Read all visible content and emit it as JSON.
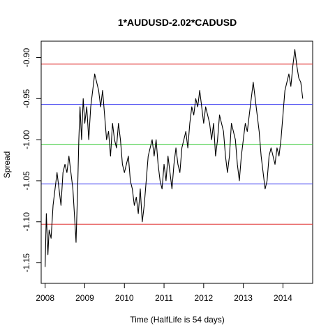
{
  "chart_data": {
    "type": "line",
    "title": "1*AUDUSD-2.02*CADUSD",
    "xlabel": "Time  (HalfLife is 54 days)",
    "ylabel": "Spread",
    "xlim": [
      2007.9,
      2014.75
    ],
    "ylim": [
      -1.175,
      -0.88
    ],
    "x_ticks": [
      2008,
      2009,
      2010,
      2011,
      2012,
      2013,
      2014
    ],
    "x_tick_labels": [
      "2008",
      "2009",
      "2010",
      "2011",
      "2012",
      "2013",
      "2014"
    ],
    "y_ticks": [
      -1.15,
      -1.1,
      -1.05,
      -1.0,
      -0.95,
      -0.9
    ],
    "y_tick_labels": [
      "-1.15",
      "-1.10",
      "-1.05",
      "-1.00",
      "-0.95",
      "-0.90"
    ],
    "horizontal_lines": [
      {
        "value": -0.908,
        "color": "#e03030"
      },
      {
        "value": -0.957,
        "color": "#3c3cf0"
      },
      {
        "value": -1.006,
        "color": "#2ec82e"
      },
      {
        "value": -1.054,
        "color": "#3c3cf0"
      },
      {
        "value": -1.103,
        "color": "#e03030"
      }
    ],
    "series": [
      {
        "color": "#000000",
        "points": [
          [
            2008.0,
            -1.155
          ],
          [
            2008.03,
            -1.09
          ],
          [
            2008.07,
            -1.14
          ],
          [
            2008.1,
            -1.11
          ],
          [
            2008.15,
            -1.12
          ],
          [
            2008.2,
            -1.08
          ],
          [
            2008.25,
            -1.06
          ],
          [
            2008.3,
            -1.04
          ],
          [
            2008.35,
            -1.06
          ],
          [
            2008.4,
            -1.08
          ],
          [
            2008.45,
            -1.04
          ],
          [
            2008.5,
            -1.03
          ],
          [
            2008.55,
            -1.04
          ],
          [
            2008.6,
            -1.02
          ],
          [
            2008.65,
            -1.04
          ],
          [
            2008.7,
            -1.06
          ],
          [
            2008.75,
            -1.1
          ],
          [
            2008.78,
            -1.125
          ],
          [
            2008.82,
            -1.06
          ],
          [
            2008.85,
            -1.0
          ],
          [
            2008.88,
            -0.96
          ],
          [
            2008.92,
            -1.0
          ],
          [
            2008.96,
            -0.95
          ],
          [
            2009.0,
            -0.98
          ],
          [
            2009.05,
            -0.96
          ],
          [
            2009.1,
            -1.0
          ],
          [
            2009.15,
            -0.96
          ],
          [
            2009.2,
            -0.94
          ],
          [
            2009.25,
            -0.92
          ],
          [
            2009.3,
            -0.93
          ],
          [
            2009.35,
            -0.94
          ],
          [
            2009.4,
            -0.96
          ],
          [
            2009.45,
            -0.94
          ],
          [
            2009.5,
            -0.97
          ],
          [
            2009.55,
            -1.0
          ],
          [
            2009.6,
            -0.99
          ],
          [
            2009.65,
            -1.02
          ],
          [
            2009.7,
            -0.98
          ],
          [
            2009.75,
            -1.0
          ],
          [
            2009.8,
            -1.01
          ],
          [
            2009.85,
            -0.98
          ],
          [
            2009.9,
            -1.0
          ],
          [
            2009.95,
            -1.03
          ],
          [
            2010.0,
            -1.04
          ],
          [
            2010.05,
            -1.03
          ],
          [
            2010.1,
            -1.02
          ],
          [
            2010.15,
            -1.05
          ],
          [
            2010.2,
            -1.06
          ],
          [
            2010.25,
            -1.08
          ],
          [
            2010.3,
            -1.07
          ],
          [
            2010.35,
            -1.09
          ],
          [
            2010.4,
            -1.06
          ],
          [
            2010.45,
            -1.1
          ],
          [
            2010.5,
            -1.08
          ],
          [
            2010.55,
            -1.05
          ],
          [
            2010.6,
            -1.02
          ],
          [
            2010.65,
            -1.01
          ],
          [
            2010.7,
            -1.0
          ],
          [
            2010.75,
            -1.02
          ],
          [
            2010.8,
            -1.0
          ],
          [
            2010.85,
            -1.03
          ],
          [
            2010.9,
            -1.05
          ],
          [
            2010.95,
            -1.06
          ],
          [
            2011.0,
            -1.03
          ],
          [
            2011.05,
            -1.05
          ],
          [
            2011.1,
            -1.02
          ],
          [
            2011.15,
            -1.04
          ],
          [
            2011.2,
            -1.06
          ],
          [
            2011.25,
            -1.03
          ],
          [
            2011.3,
            -1.01
          ],
          [
            2011.35,
            -1.03
          ],
          [
            2011.4,
            -1.04
          ],
          [
            2011.45,
            -1.01
          ],
          [
            2011.5,
            -1.0
          ],
          [
            2011.55,
            -0.99
          ],
          [
            2011.6,
            -1.01
          ],
          [
            2011.65,
            -0.98
          ],
          [
            2011.7,
            -0.96
          ],
          [
            2011.75,
            -0.97
          ],
          [
            2011.8,
            -0.95
          ],
          [
            2011.85,
            -0.96
          ],
          [
            2011.9,
            -0.94
          ],
          [
            2011.95,
            -0.96
          ],
          [
            2012.0,
            -0.98
          ],
          [
            2012.05,
            -0.96
          ],
          [
            2012.1,
            -0.97
          ],
          [
            2012.15,
            -0.98
          ],
          [
            2012.2,
            -1.0
          ],
          [
            2012.25,
            -0.98
          ],
          [
            2012.3,
            -1.02
          ],
          [
            2012.35,
            -1.0
          ],
          [
            2012.4,
            -0.97
          ],
          [
            2012.45,
            -0.98
          ],
          [
            2012.5,
            -0.99
          ],
          [
            2012.55,
            -1.02
          ],
          [
            2012.6,
            -1.04
          ],
          [
            2012.65,
            -1.02
          ],
          [
            2012.7,
            -0.98
          ],
          [
            2012.75,
            -0.99
          ],
          [
            2012.8,
            -1.0
          ],
          [
            2012.85,
            -1.03
          ],
          [
            2012.9,
            -1.05
          ],
          [
            2012.95,
            -1.02
          ],
          [
            2013.0,
            -1.0
          ],
          [
            2013.05,
            -0.98
          ],
          [
            2013.1,
            -0.99
          ],
          [
            2013.15,
            -0.97
          ],
          [
            2013.2,
            -0.95
          ],
          [
            2013.25,
            -0.93
          ],
          [
            2013.3,
            -0.95
          ],
          [
            2013.35,
            -0.97
          ],
          [
            2013.4,
            -0.99
          ],
          [
            2013.45,
            -1.02
          ],
          [
            2013.5,
            -1.04
          ],
          [
            2013.55,
            -1.06
          ],
          [
            2013.6,
            -1.05
          ],
          [
            2013.65,
            -1.02
          ],
          [
            2013.7,
            -1.01
          ],
          [
            2013.75,
            -1.02
          ],
          [
            2013.8,
            -1.03
          ],
          [
            2013.85,
            -1.01
          ],
          [
            2013.9,
            -1.02
          ],
          [
            2013.95,
            -1.0
          ],
          [
            2014.0,
            -0.97
          ],
          [
            2014.05,
            -0.94
          ],
          [
            2014.1,
            -0.93
          ],
          [
            2014.15,
            -0.92
          ],
          [
            2014.2,
            -0.935
          ],
          [
            2014.25,
            -0.91
          ],
          [
            2014.3,
            -0.89
          ],
          [
            2014.35,
            -0.91
          ],
          [
            2014.4,
            -0.925
          ],
          [
            2014.45,
            -0.93
          ],
          [
            2014.5,
            -0.95
          ]
        ]
      }
    ]
  }
}
